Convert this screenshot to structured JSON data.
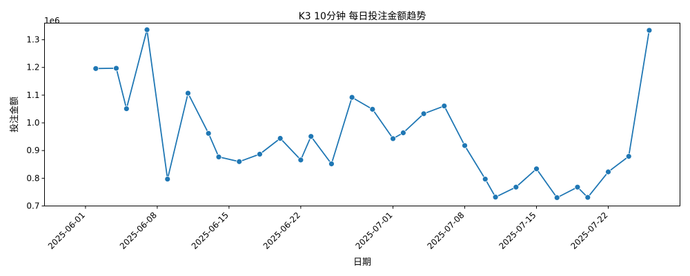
{
  "chart_data": {
    "type": "line",
    "title": "K3 10分钟 每日投注金额趋势",
    "xlabel": "日期",
    "ylabel": "投注金额",
    "y_offset_label": "1e6",
    "grid": false,
    "color": "#1f77b4",
    "xlim": [
      "2025-05-28",
      "2025-07-29"
    ],
    "ylim": [
      0.7,
      1.36
    ],
    "x_ticks": [
      "2025-06-01",
      "2025-06-08",
      "2025-06-15",
      "2025-06-22",
      "2025-07-01",
      "2025-07-08",
      "2025-07-15",
      "2025-07-22"
    ],
    "y_ticks": [
      0.7,
      0.8,
      0.9,
      1.0,
      1.1,
      1.2,
      1.3
    ],
    "y_tick_labels": [
      "0.7",
      "0.8",
      "0.9",
      "1.0",
      "1.1",
      "1.2",
      "1.3"
    ],
    "series": [
      {
        "points": [
          {
            "date": "2025-06-02",
            "value": 1.196
          },
          {
            "date": "2025-06-04",
            "value": 1.197
          },
          {
            "date": "2025-06-05",
            "value": 1.051
          },
          {
            "date": "2025-06-07",
            "value": 1.336
          },
          {
            "date": "2025-06-09",
            "value": 0.797
          },
          {
            "date": "2025-06-11",
            "value": 1.107
          },
          {
            "date": "2025-06-13",
            "value": 0.962
          },
          {
            "date": "2025-06-14",
            "value": 0.877
          },
          {
            "date": "2025-06-16",
            "value": 0.86
          },
          {
            "date": "2025-06-18",
            "value": 0.887
          },
          {
            "date": "2025-06-20",
            "value": 0.944
          },
          {
            "date": "2025-06-22",
            "value": 0.866
          },
          {
            "date": "2025-06-23",
            "value": 0.951
          },
          {
            "date": "2025-06-25",
            "value": 0.852
          },
          {
            "date": "2025-06-27",
            "value": 1.092
          },
          {
            "date": "2025-06-29",
            "value": 1.049
          },
          {
            "date": "2025-07-01",
            "value": 0.943
          },
          {
            "date": "2025-07-02",
            "value": 0.964
          },
          {
            "date": "2025-07-04",
            "value": 1.033
          },
          {
            "date": "2025-07-06",
            "value": 1.061
          },
          {
            "date": "2025-07-08",
            "value": 0.918
          },
          {
            "date": "2025-07-10",
            "value": 0.797
          },
          {
            "date": "2025-07-11",
            "value": 0.732
          },
          {
            "date": "2025-07-13",
            "value": 0.768
          },
          {
            "date": "2025-07-15",
            "value": 0.834
          },
          {
            "date": "2025-07-17",
            "value": 0.73
          },
          {
            "date": "2025-07-19",
            "value": 0.768
          },
          {
            "date": "2025-07-20",
            "value": 0.731
          },
          {
            "date": "2025-07-22",
            "value": 0.823
          },
          {
            "date": "2025-07-24",
            "value": 0.879
          },
          {
            "date": "2025-07-26",
            "value": 1.334
          }
        ]
      }
    ]
  }
}
